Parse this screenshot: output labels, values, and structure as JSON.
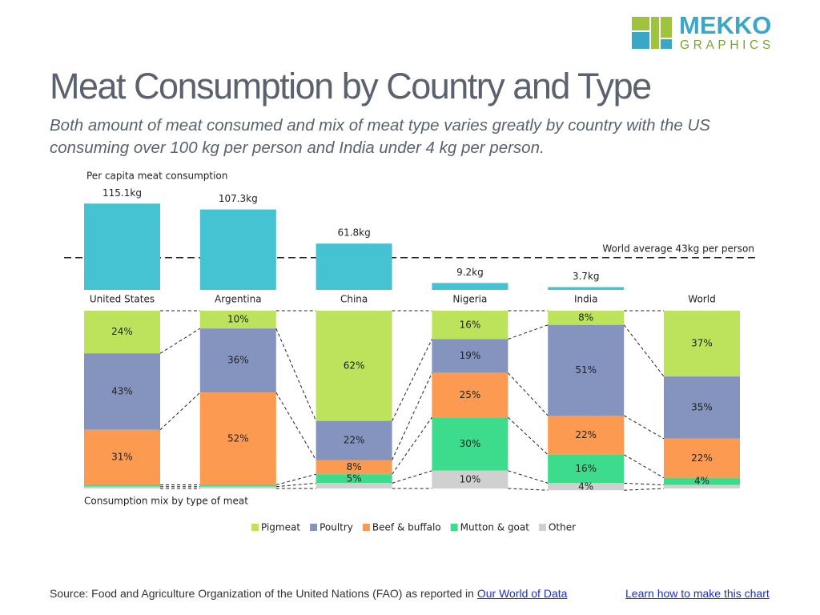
{
  "logo": {
    "top": "MEKKO",
    "bottom": "GRAPHICS"
  },
  "title": "Meat Consumption by Country and Type",
  "subtitle": "Both amount of meat consumed and mix of meat type varies greatly by country with the US consuming over 100 kg per person and India under 4 kg per person.",
  "source": {
    "text": "Source: Food and Agriculture Organization of the United Nations (FAO) as reported in",
    "link": "Our World of Data"
  },
  "learn_link": "Learn how to make this chart",
  "chart_data": {
    "type": "bar_mix",
    "categories": [
      "United States",
      "Argentina",
      "China",
      "Nigeria",
      "India",
      "World"
    ],
    "totals": {
      "title": "Per capita meat consumption",
      "values": [
        115.1,
        107.3,
        61.8,
        9.2,
        3.7,
        null
      ],
      "value_labels": [
        "115.1kg",
        "107.3kg",
        "61.8kg",
        "9.2kg",
        "3.7kg",
        null
      ],
      "color": "#45c3d2",
      "ylim": [
        0,
        125
      ],
      "reference": {
        "value": 43,
        "label": "World average 43kg per person"
      }
    },
    "mix": {
      "title": "Consumption mix by type of meat",
      "ylim": [
        0,
        100
      ],
      "series": [
        {
          "name": "Pigmeat",
          "color": "#bde35c",
          "values": [
            24,
            10,
            62,
            16,
            8,
            37
          ],
          "value_labels": [
            "24%",
            "10%",
            "62%",
            "16%",
            "8%",
            "37%"
          ]
        },
        {
          "name": "Poultry",
          "color": "#8593bf",
          "values": [
            43,
            36,
            22,
            19,
            51,
            35
          ],
          "value_labels": [
            "43%",
            "36%",
            "22%",
            "19%",
            "51%",
            "35%"
          ]
        },
        {
          "name": "Beef & buffalo",
          "color": "#fb9a50",
          "values": [
            31,
            52,
            8,
            25,
            22,
            22
          ],
          "value_labels": [
            "31%",
            "52%",
            "8%",
            "25%",
            "22%",
            "22%"
          ]
        },
        {
          "name": "Mutton & goat",
          "color": "#3ddc8c",
          "values": [
            1,
            1,
            5,
            30,
            16,
            4
          ],
          "value_labels": [
            null,
            null,
            "5%",
            "30%",
            "16%",
            "4%"
          ]
        },
        {
          "name": "Other",
          "color": "#d0d0d0",
          "values": [
            1,
            1,
            3,
            10,
            4,
            2
          ],
          "value_labels": [
            null,
            null,
            null,
            "10%",
            "4%",
            null
          ]
        }
      ]
    }
  }
}
